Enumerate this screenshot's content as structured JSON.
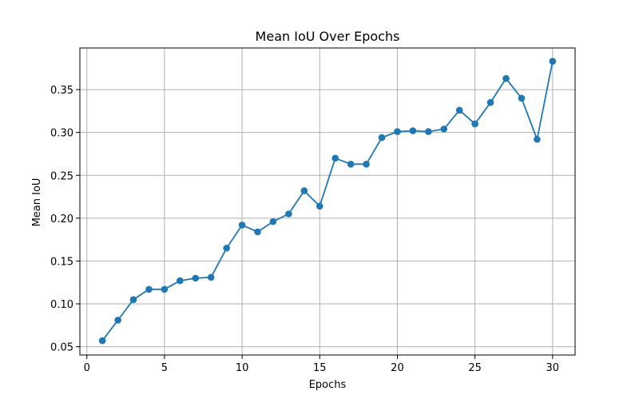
{
  "chart_data": {
    "type": "line",
    "title": "Mean IoU Over Epochs",
    "xlabel": "Epochs",
    "ylabel": "Mean IoU",
    "xlim": [
      -0.45,
      31.45
    ],
    "ylim": [
      0.0403,
      0.3986
    ],
    "xticks": [
      0,
      5,
      10,
      15,
      20,
      25,
      30
    ],
    "xtick_labels": [
      "0",
      "5",
      "10",
      "15",
      "20",
      "25",
      "30"
    ],
    "yticks": [
      0.05,
      0.1,
      0.15,
      0.2,
      0.25,
      0.3,
      0.35
    ],
    "ytick_labels": [
      "0.05",
      "0.10",
      "0.15",
      "0.20",
      "0.25",
      "0.30",
      "0.35"
    ],
    "grid": true,
    "color": "#1f77b4",
    "marker": "circle",
    "x": [
      1,
      2,
      3,
      4,
      5,
      6,
      7,
      8,
      9,
      10,
      11,
      12,
      13,
      14,
      15,
      16,
      17,
      18,
      19,
      20,
      21,
      22,
      23,
      24,
      25,
      26,
      27,
      28,
      29,
      30
    ],
    "series": [
      {
        "values": [
          0.057,
          0.081,
          0.105,
          0.117,
          0.117,
          0.127,
          0.13,
          0.131,
          0.165,
          0.192,
          0.184,
          0.196,
          0.205,
          0.232,
          0.214,
          0.27,
          0.263,
          0.263,
          0.294,
          0.301,
          0.302,
          0.301,
          0.304,
          0.326,
          0.31,
          0.335,
          0.363,
          0.34,
          0.292,
          0.383
        ]
      }
    ]
  }
}
